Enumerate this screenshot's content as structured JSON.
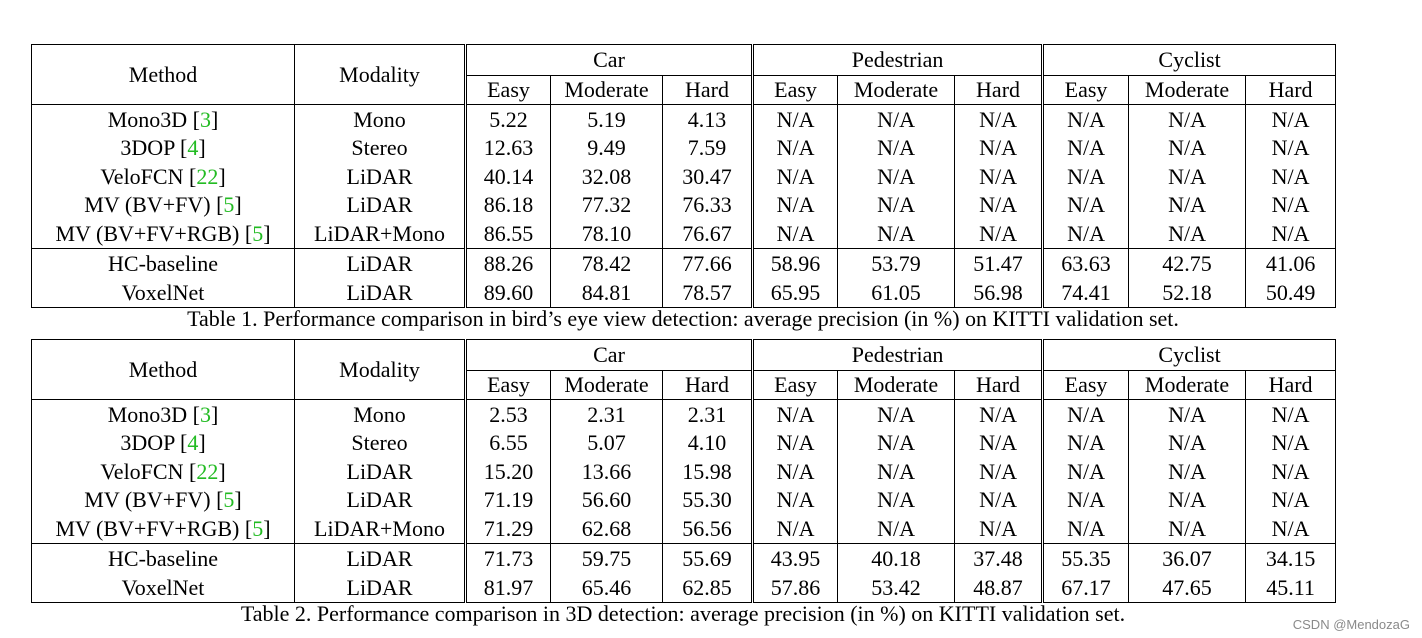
{
  "table1": {
    "caption": "Table 1. Performance comparison in bird’s eye view detection: average precision (in %) on KITTI validation set.",
    "headers": {
      "method": "Method",
      "modality": "Modality",
      "groups": [
        "Car",
        "Pedestrian",
        "Cyclist"
      ],
      "subs": [
        "Easy",
        "Moderate",
        "Hard",
        "Easy",
        "Moderate",
        "Hard",
        "Easy",
        "Moderate",
        "Hard"
      ]
    },
    "rows": [
      {
        "method": "Mono3D",
        "ref": "3",
        "modality": "Mono",
        "values": [
          "5.22",
          "5.19",
          "4.13",
          "N/A",
          "N/A",
          "N/A",
          "N/A",
          "N/A",
          "N/A"
        ]
      },
      {
        "method": "3DOP",
        "ref": "4",
        "modality": "Stereo",
        "values": [
          "12.63",
          "9.49",
          "7.59",
          "N/A",
          "N/A",
          "N/A",
          "N/A",
          "N/A",
          "N/A"
        ]
      },
      {
        "method": "VeloFCN",
        "ref": "22",
        "modality": "LiDAR",
        "values": [
          "40.14",
          "32.08",
          "30.47",
          "N/A",
          "N/A",
          "N/A",
          "N/A",
          "N/A",
          "N/A"
        ]
      },
      {
        "method": "MV (BV+FV)",
        "ref": "5",
        "modality": "LiDAR",
        "values": [
          "86.18",
          "77.32",
          "76.33",
          "N/A",
          "N/A",
          "N/A",
          "N/A",
          "N/A",
          "N/A"
        ]
      },
      {
        "method": "MV (BV+FV+RGB)",
        "ref": "5",
        "modality": "LiDAR+Mono",
        "values": [
          "86.55",
          "78.10",
          "76.67",
          "N/A",
          "N/A",
          "N/A",
          "N/A",
          "N/A",
          "N/A"
        ]
      },
      {
        "method": "HC-baseline",
        "ref": "",
        "modality": "LiDAR",
        "values": [
          "88.26",
          "78.42",
          "77.66",
          "58.96",
          "53.79",
          "51.47",
          "63.63",
          "42.75",
          "41.06"
        ]
      },
      {
        "method": "VoxelNet",
        "ref": "",
        "modality": "LiDAR",
        "values": [
          "89.60",
          "84.81",
          "78.57",
          "65.95",
          "61.05",
          "56.98",
          "74.41",
          "52.18",
          "50.49"
        ]
      }
    ]
  },
  "table2": {
    "caption": "Table 2. Performance comparison in 3D detection: average precision (in %) on KITTI validation set.",
    "headers": {
      "method": "Method",
      "modality": "Modality",
      "groups": [
        "Car",
        "Pedestrian",
        "Cyclist"
      ],
      "subs": [
        "Easy",
        "Moderate",
        "Hard",
        "Easy",
        "Moderate",
        "Hard",
        "Easy",
        "Moderate",
        "Hard"
      ]
    },
    "rows": [
      {
        "method": "Mono3D",
        "ref": "3",
        "modality": "Mono",
        "values": [
          "2.53",
          "2.31",
          "2.31",
          "N/A",
          "N/A",
          "N/A",
          "N/A",
          "N/A",
          "N/A"
        ]
      },
      {
        "method": "3DOP",
        "ref": "4",
        "modality": "Stereo",
        "values": [
          "6.55",
          "5.07",
          "4.10",
          "N/A",
          "N/A",
          "N/A",
          "N/A",
          "N/A",
          "N/A"
        ]
      },
      {
        "method": "VeloFCN",
        "ref": "22",
        "modality": "LiDAR",
        "values": [
          "15.20",
          "13.66",
          "15.98",
          "N/A",
          "N/A",
          "N/A",
          "N/A",
          "N/A",
          "N/A"
        ]
      },
      {
        "method": "MV (BV+FV)",
        "ref": "5",
        "modality": "LiDAR",
        "values": [
          "71.19",
          "56.60",
          "55.30",
          "N/A",
          "N/A",
          "N/A",
          "N/A",
          "N/A",
          "N/A"
        ]
      },
      {
        "method": "MV (BV+FV+RGB)",
        "ref": "5",
        "modality": "LiDAR+Mono",
        "values": [
          "71.29",
          "62.68",
          "56.56",
          "N/A",
          "N/A",
          "N/A",
          "N/A",
          "N/A",
          "N/A"
        ]
      },
      {
        "method": "HC-baseline",
        "ref": "",
        "modality": "LiDAR",
        "values": [
          "71.73",
          "59.75",
          "55.69",
          "43.95",
          "40.18",
          "37.48",
          "55.35",
          "36.07",
          "34.15"
        ]
      },
      {
        "method": "VoxelNet",
        "ref": "",
        "modality": "LiDAR",
        "values": [
          "81.97",
          "65.46",
          "62.85",
          "57.86",
          "53.42",
          "48.87",
          "67.17",
          "47.65",
          "45.11"
        ]
      }
    ]
  },
  "watermark": "CSDN @MendozaG",
  "colors": {
    "citation": "#22bb22",
    "text": "#000000",
    "watermark": "#8a8a8a"
  }
}
